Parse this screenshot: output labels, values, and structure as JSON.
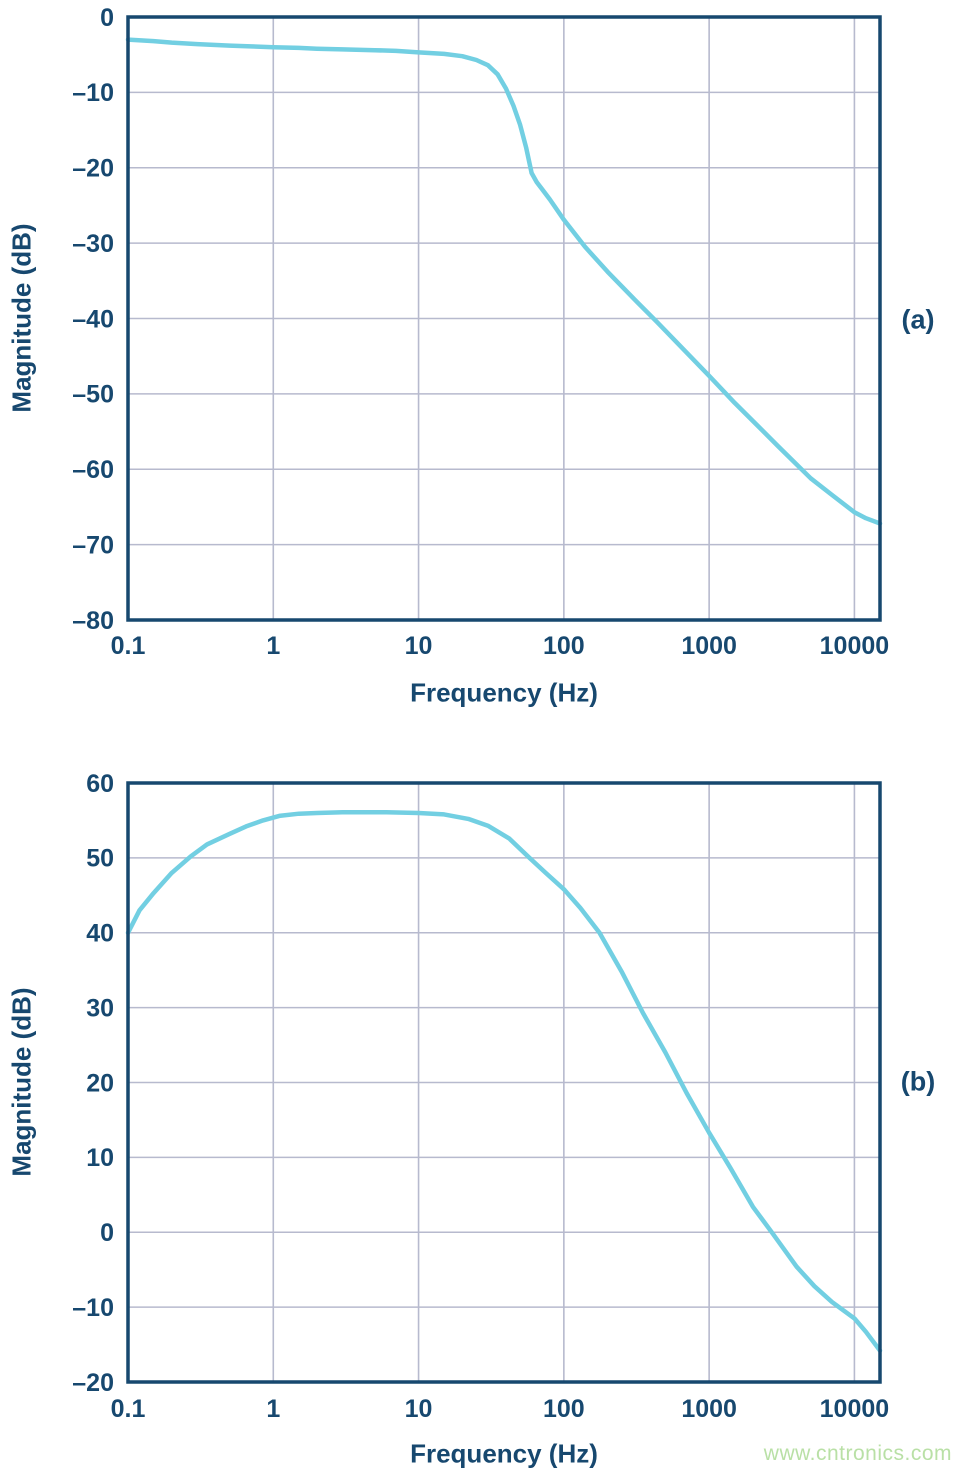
{
  "watermark": "www.cntronics.com",
  "colors": {
    "axis_and_text": "#17486f",
    "curve": "#72cfe2",
    "gridline": "#b7bace",
    "watermark": "#b9e0a6",
    "background": "#ffffff"
  },
  "chart_data": [
    {
      "type": "line",
      "panel_label": "(a)",
      "x_title": "Frequency (Hz)",
      "y_title": "Magnitude (dB)",
      "x_scale": "log",
      "x_range": [
        0.1,
        15000
      ],
      "y_range": [
        -80,
        0
      ],
      "grid": true,
      "legend": "none",
      "x_ticks": [
        {
          "v": 0.1,
          "label": "0.1"
        },
        {
          "v": 1,
          "label": "1"
        },
        {
          "v": 10,
          "label": "10"
        },
        {
          "v": 100,
          "label": "100"
        },
        {
          "v": 1000,
          "label": "1000"
        },
        {
          "v": 10000,
          "label": "10000"
        }
      ],
      "y_ticks": [
        {
          "v": 0,
          "label": "0"
        },
        {
          "v": -10,
          "label": "–10"
        },
        {
          "v": -20,
          "label": "–20"
        },
        {
          "v": -30,
          "label": "–30"
        },
        {
          "v": -40,
          "label": "–40"
        },
        {
          "v": -50,
          "label": "–50"
        },
        {
          "v": -60,
          "label": "–60"
        },
        {
          "v": -70,
          "label": "–70"
        },
        {
          "v": -80,
          "label": "–80"
        }
      ],
      "series": [
        {
          "name": "lowpass-notch-magnitude-response",
          "points": [
            [
              0.1,
              -3.0
            ],
            [
              0.15,
              -3.2
            ],
            [
              0.2,
              -3.4
            ],
            [
              0.3,
              -3.6
            ],
            [
              0.5,
              -3.8
            ],
            [
              0.7,
              -3.9
            ],
            [
              1,
              -4.0
            ],
            [
              1.5,
              -4.1
            ],
            [
              2,
              -4.2
            ],
            [
              3,
              -4.3
            ],
            [
              5,
              -4.4
            ],
            [
              7,
              -4.5
            ],
            [
              10,
              -4.7
            ],
            [
              15,
              -4.9
            ],
            [
              20,
              -5.2
            ],
            [
              25,
              -5.7
            ],
            [
              30,
              -6.4
            ],
            [
              35,
              -7.6
            ],
            [
              40,
              -9.5
            ],
            [
              45,
              -11.8
            ],
            [
              50,
              -14.3
            ],
            [
              55,
              -17.3
            ],
            [
              60,
              -20.7
            ],
            [
              65,
              -21.9
            ],
            [
              70,
              -22.7
            ],
            [
              80,
              -24.2
            ],
            [
              100,
              -26.9
            ],
            [
              140,
              -30.5
            ],
            [
              200,
              -33.8
            ],
            [
              300,
              -37.3
            ],
            [
              440,
              -40.5
            ],
            [
              600,
              -43.2
            ],
            [
              1000,
              -47.6
            ],
            [
              1500,
              -51.2
            ],
            [
              2000,
              -53.6
            ],
            [
              3000,
              -57.0
            ],
            [
              5000,
              -61.2
            ],
            [
              7000,
              -63.4
            ],
            [
              10000,
              -65.7
            ],
            [
              12000,
              -66.5
            ],
            [
              15000,
              -67.2
            ]
          ]
        }
      ]
    },
    {
      "type": "line",
      "panel_label": "(b)",
      "x_title": "Frequency (Hz)",
      "y_title": "Magnitude (dB)",
      "x_scale": "log",
      "x_range": [
        0.1,
        15000
      ],
      "y_range": [
        -20,
        60
      ],
      "grid": true,
      "legend": "none",
      "x_ticks": [
        {
          "v": 0.1,
          "label": "0.1"
        },
        {
          "v": 1,
          "label": "1"
        },
        {
          "v": 10,
          "label": "10"
        },
        {
          "v": 100,
          "label": "100"
        },
        {
          "v": 1000,
          "label": "1000"
        },
        {
          "v": 10000,
          "label": "10000"
        }
      ],
      "y_ticks": [
        {
          "v": 60,
          "label": "60"
        },
        {
          "v": 50,
          "label": "50"
        },
        {
          "v": 40,
          "label": "40"
        },
        {
          "v": 30,
          "label": "30"
        },
        {
          "v": 20,
          "label": "20"
        },
        {
          "v": 10,
          "label": "10"
        },
        {
          "v": 0,
          "label": "0"
        },
        {
          "v": -10,
          "label": "–10"
        },
        {
          "v": -20,
          "label": "–20"
        }
      ],
      "series": [
        {
          "name": "bandpass-magnitude-response",
          "points": [
            [
              0.1,
              40.0
            ],
            [
              0.12,
              43.0
            ],
            [
              0.15,
              45.3
            ],
            [
              0.2,
              48.0
            ],
            [
              0.27,
              50.2
            ],
            [
              0.35,
              51.8
            ],
            [
              0.5,
              53.2
            ],
            [
              0.65,
              54.2
            ],
            [
              0.85,
              55.0
            ],
            [
              1.1,
              55.6
            ],
            [
              1.5,
              55.9
            ],
            [
              2,
              56.0
            ],
            [
              3,
              56.1
            ],
            [
              6,
              56.1
            ],
            [
              10,
              56.0
            ],
            [
              15,
              55.8
            ],
            [
              22,
              55.2
            ],
            [
              30,
              54.3
            ],
            [
              42,
              52.6
            ],
            [
              58,
              50.0
            ],
            [
              75,
              48.0
            ],
            [
              100,
              45.8
            ],
            [
              130,
              43.3
            ],
            [
              176,
              40.0
            ],
            [
              250,
              34.8
            ],
            [
              350,
              29.3
            ],
            [
              500,
              24.0
            ],
            [
              700,
              18.6
            ],
            [
              1000,
              13.3
            ],
            [
              1400,
              8.6
            ],
            [
              2000,
              3.4
            ],
            [
              2700,
              0.0
            ],
            [
              4000,
              -4.6
            ],
            [
              5300,
              -7.2
            ],
            [
              7000,
              -9.3
            ],
            [
              10000,
              -11.5
            ],
            [
              12000,
              -13.3
            ],
            [
              15000,
              -15.8
            ]
          ]
        }
      ]
    }
  ]
}
